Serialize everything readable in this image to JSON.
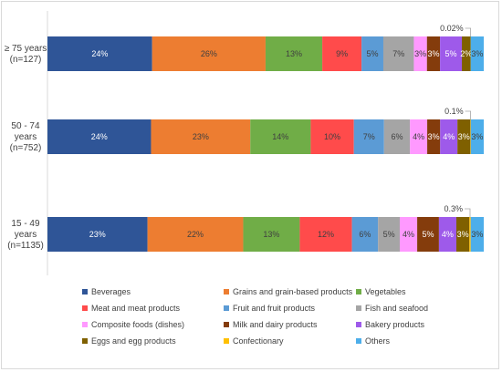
{
  "chart_data": {
    "type": "bar",
    "orientation": "horizontal",
    "stacked": true,
    "title": "",
    "xlabel": "",
    "ylabel": "",
    "xlim": [
      0,
      100
    ],
    "grid": false,
    "legend_position": "bottom",
    "categories": [
      [
        "≥ 75 years",
        "(n=127)"
      ],
      [
        "50 - 74",
        "years",
        "(n=752)"
      ],
      [
        "15 - 49",
        "years",
        "(n=1135)"
      ]
    ],
    "series": [
      {
        "name": "Beverages",
        "color": "#2F5597",
        "values": [
          24,
          24,
          23
        ],
        "labels": [
          "24%",
          "24%",
          "23%"
        ]
      },
      {
        "name": "Grains and grain-based products",
        "color": "#ED7D31",
        "values": [
          26,
          23,
          22
        ],
        "labels": [
          "26%",
          "23%",
          "22%"
        ]
      },
      {
        "name": "Vegetables",
        "color": "#70AD47",
        "values": [
          13,
          14,
          13
        ],
        "labels": [
          "13%",
          "14%",
          "13%"
        ]
      },
      {
        "name": "Meat and meat products",
        "color": "#FF4B4B",
        "values": [
          9,
          10,
          12
        ],
        "labels": [
          "9%",
          "10%",
          "12%"
        ]
      },
      {
        "name": "Fruit and fruit products",
        "color": "#5B9BD5",
        "values": [
          5,
          7,
          6
        ],
        "labels": [
          "5%",
          "7%",
          "6%"
        ]
      },
      {
        "name": "Fish and seafood",
        "color": "#A5A5A5",
        "values": [
          7,
          6,
          5
        ],
        "labels": [
          "7%",
          "6%",
          "5%"
        ]
      },
      {
        "name": "Composite foods (dishes)",
        "color": "#FF99FF",
        "values": [
          3,
          4,
          4
        ],
        "labels": [
          "3%",
          "4%",
          "4%"
        ]
      },
      {
        "name": "Milk and dairy products",
        "color": "#843C0C",
        "values": [
          3,
          3,
          5
        ],
        "labels": [
          "3%",
          "3%",
          "5%"
        ]
      },
      {
        "name": "Bakery products",
        "color": "#9E5AEA",
        "values": [
          5,
          4,
          4
        ],
        "labels": [
          "5%",
          "4%",
          "4%"
        ]
      },
      {
        "name": "Eggs and egg products",
        "color": "#7F6000",
        "values": [
          2,
          3,
          3
        ],
        "labels": [
          "2%",
          "3%",
          "3%"
        ]
      },
      {
        "name": "Confectionary",
        "color": "#FFC000",
        "values": [
          0.02,
          0.1,
          0.3
        ],
        "labels": [
          "",
          "",
          ""
        ]
      },
      {
        "name": "Others",
        "color": "#4DAEEA",
        "values": [
          3,
          3,
          3
        ],
        "labels": [
          "3%",
          "3%",
          "3%"
        ]
      }
    ],
    "annotations": [
      "0.02%",
      "0.1%",
      "0.3%"
    ]
  }
}
